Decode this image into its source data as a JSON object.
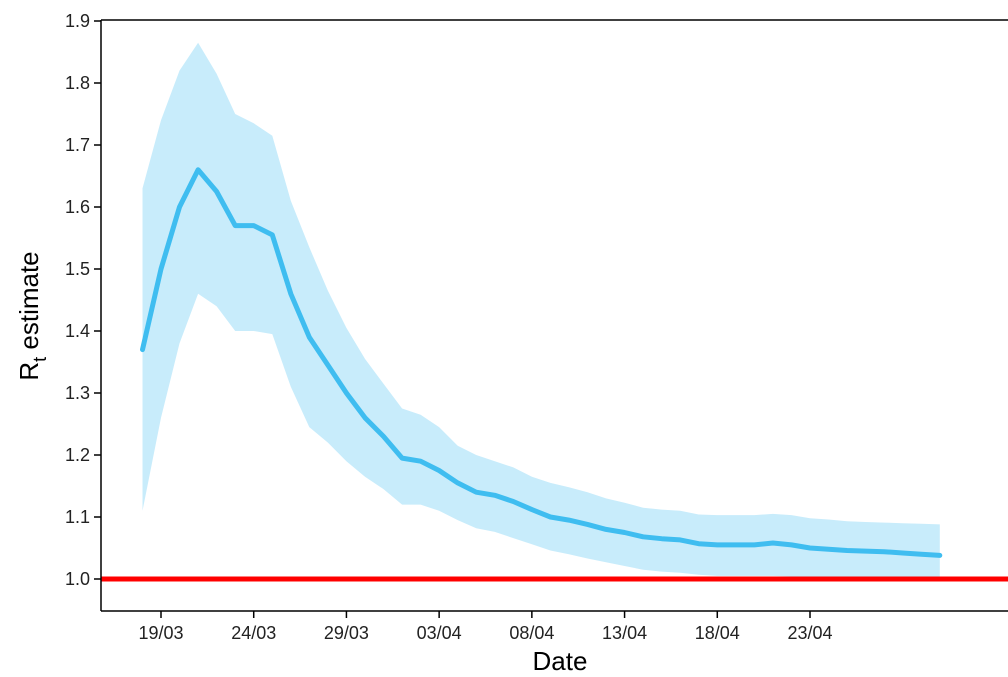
{
  "chart_data": {
    "type": "line",
    "xlabel": "Date",
    "ylabel": "R",
    "ylabel_subscript": "t",
    "ylabel_suffix": " estimate",
    "ylim": [
      0.95,
      1.9
    ],
    "xlim": [
      "2020-03-16",
      "2020-05-01"
    ],
    "y_ticks": [
      1.0,
      1.1,
      1.2,
      1.3,
      1.4,
      1.5,
      1.6,
      1.7,
      1.8,
      1.9
    ],
    "y_tick_labels": [
      "1.0",
      "1.1",
      "1.2",
      "1.3",
      "1.4",
      "1.5",
      "1.6",
      "1.7",
      "1.8",
      "1.9"
    ],
    "x_ticks": [
      "2020-03-19",
      "2020-03-24",
      "2020-03-29",
      "2020-04-03",
      "2020-04-08",
      "2020-04-13",
      "2020-04-18",
      "2020-04-23"
    ],
    "x_tick_labels": [
      "19/03",
      "24/03",
      "29/03",
      "03/04",
      "08/04",
      "13/04",
      "18/04",
      "23/04"
    ],
    "x": [
      "2020-03-18",
      "2020-03-19",
      "2020-03-20",
      "2020-03-21",
      "2020-03-22",
      "2020-03-23",
      "2020-03-24",
      "2020-03-25",
      "2020-03-26",
      "2020-03-27",
      "2020-03-28",
      "2020-03-29",
      "2020-03-30",
      "2020-03-31",
      "2020-04-01",
      "2020-04-02",
      "2020-04-03",
      "2020-04-04",
      "2020-04-05",
      "2020-04-06",
      "2020-04-07",
      "2020-04-08",
      "2020-04-09",
      "2020-04-10",
      "2020-04-11",
      "2020-04-12",
      "2020-04-13",
      "2020-04-14",
      "2020-04-15",
      "2020-04-16",
      "2020-04-17",
      "2020-04-18",
      "2020-04-19",
      "2020-04-20",
      "2020-04-21",
      "2020-04-22",
      "2020-04-23",
      "2020-04-24",
      "2020-04-25",
      "2020-04-26",
      "2020-04-27",
      "2020-04-28",
      "2020-04-29",
      "2020-04-30"
    ],
    "series": [
      {
        "role": "estimate",
        "values": [
          1.37,
          1.5,
          1.6,
          1.66,
          1.625,
          1.57,
          1.57,
          1.555,
          1.46,
          1.39,
          1.345,
          1.3,
          1.26,
          1.23,
          1.195,
          1.19,
          1.175,
          1.155,
          1.14,
          1.135,
          1.125,
          1.112,
          1.1,
          1.095,
          1.088,
          1.08,
          1.075,
          1.068,
          1.065,
          1.063,
          1.057,
          1.055,
          1.055,
          1.055,
          1.058,
          1.055,
          1.05,
          1.048,
          1.046,
          1.045,
          1.044,
          1.042,
          1.04,
          1.038
        ],
        "lower": [
          1.11,
          1.26,
          1.38,
          1.46,
          1.44,
          1.4,
          1.4,
          1.395,
          1.31,
          1.245,
          1.22,
          1.19,
          1.165,
          1.145,
          1.12,
          1.12,
          1.11,
          1.095,
          1.082,
          1.076,
          1.066,
          1.056,
          1.046,
          1.04,
          1.033,
          1.027,
          1.021,
          1.015,
          1.012,
          1.01,
          1.007,
          1.005,
          1.005,
          1.005,
          1.005,
          1.004,
          1.003,
          1.003,
          1.003,
          1.002,
          1.002,
          1.002,
          1.002,
          1.002
        ],
        "upper": [
          1.63,
          1.74,
          1.82,
          1.865,
          1.815,
          1.75,
          1.735,
          1.715,
          1.61,
          1.535,
          1.465,
          1.405,
          1.355,
          1.315,
          1.275,
          1.265,
          1.245,
          1.215,
          1.2,
          1.19,
          1.18,
          1.165,
          1.155,
          1.148,
          1.14,
          1.13,
          1.123,
          1.115,
          1.112,
          1.11,
          1.104,
          1.103,
          1.103,
          1.103,
          1.105,
          1.103,
          1.098,
          1.096,
          1.093,
          1.092,
          1.091,
          1.09,
          1.089,
          1.088
        ]
      }
    ],
    "reference_line": {
      "y": 1.0,
      "color": "#ff0000"
    },
    "line_color": "#3fbdf0",
    "band_color": "#c8ecfb",
    "grid": false,
    "legend": "none"
  }
}
